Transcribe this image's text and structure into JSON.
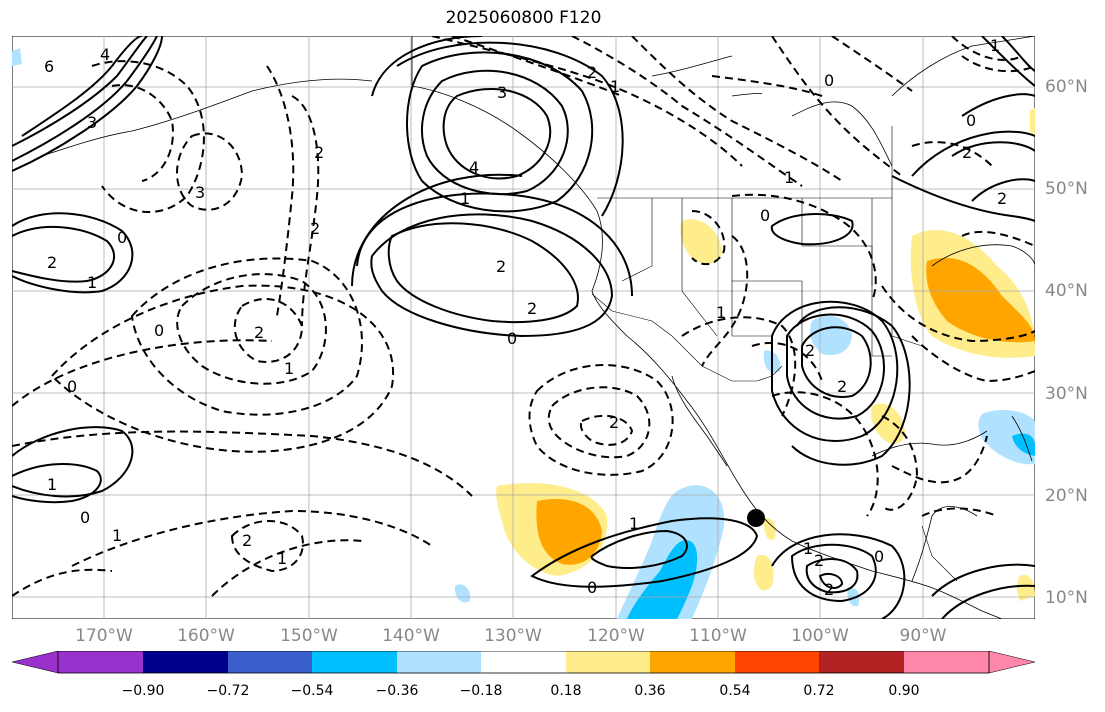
{
  "title": "2025060800 F120",
  "map": {
    "lat_labels": [
      "60°N",
      "50°N",
      "40°N",
      "30°N",
      "20°N",
      "10°N"
    ],
    "lon_labels": [
      "170°W",
      "160°W",
      "150°W",
      "140°W",
      "130°W",
      "120°W",
      "110°W",
      "100°W",
      "90°W"
    ],
    "extent": {
      "lon_min": -179,
      "lon_max": -79,
      "lat_min": 8,
      "lat_max": 65
    },
    "storm_marker": {
      "lon": -107,
      "lat": 17.5
    }
  },
  "colorbar": {
    "ticks": [
      "−0.90",
      "−0.72",
      "−0.54",
      "−0.36",
      "−0.18",
      "0.18",
      "0.36",
      "0.54",
      "0.72",
      "0.90"
    ],
    "colors": [
      "#9932cc",
      "#00008b",
      "#3a5fcd",
      "#00bfff",
      "#b0e2ff",
      "#ffffff",
      "#ffec8b",
      "#ffa500",
      "#ff4500",
      "#b22222",
      "#ff88aa"
    ]
  },
  "contour_labels": [
    "6",
    "4",
    "3",
    "2",
    "1",
    "3",
    "4",
    "1",
    "2",
    "2",
    "0",
    "2",
    "3",
    "2",
    "0",
    "0",
    "2",
    "1",
    "1",
    "1",
    "0",
    "0",
    "2",
    "2",
    "1",
    "1",
    "1",
    "2",
    "0",
    "1",
    "2",
    "2",
    "0",
    "2",
    "2",
    "1",
    "0",
    "1",
    "2",
    "2",
    "0",
    "0",
    "1"
  ]
}
